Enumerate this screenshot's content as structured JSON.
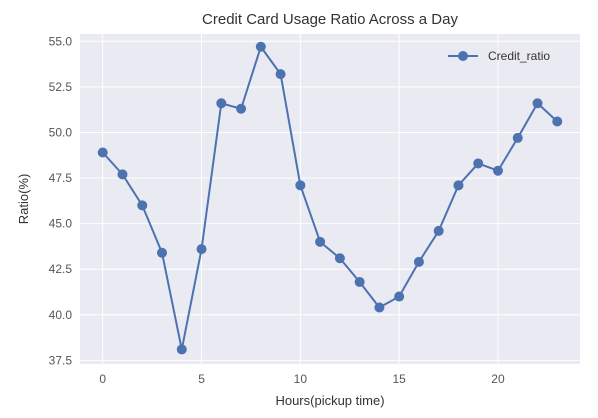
{
  "chart_data": {
    "type": "line",
    "title": "Credit Card Usage Ratio Across a Day",
    "xlabel": "Hours(pickup time)",
    "ylabel": "Ratio(%)",
    "xlim": [
      -1.15,
      24.15
    ],
    "ylim": [
      37.3,
      55.4
    ],
    "xticks": [
      0,
      5,
      10,
      15,
      20
    ],
    "yticks": [
      37.5,
      40.0,
      42.5,
      45.0,
      47.5,
      50.0,
      52.5,
      55.0
    ],
    "ytick_labels": [
      "37.5",
      "40.0",
      "42.5",
      "45.0",
      "47.5",
      "50.0",
      "52.5",
      "55.0"
    ],
    "xtick_labels": [
      "0",
      "5",
      "10",
      "15",
      "20"
    ],
    "grid": true,
    "legend_position": "top-right",
    "x": [
      0,
      1,
      2,
      3,
      4,
      5,
      6,
      7,
      8,
      9,
      10,
      11,
      12,
      13,
      14,
      15,
      16,
      17,
      18,
      19,
      20,
      21,
      22,
      23
    ],
    "series": [
      {
        "name": "Credit_ratio",
        "color": "#4c72b0",
        "values": [
          48.9,
          47.7,
          46.0,
          43.4,
          38.1,
          43.6,
          51.6,
          51.3,
          54.7,
          53.2,
          47.1,
          44.0,
          43.1,
          41.8,
          40.4,
          41.0,
          42.9,
          44.6,
          47.1,
          48.3,
          47.9,
          49.7,
          51.6,
          50.6
        ]
      }
    ],
    "plot_background": "#eaeaf2",
    "grid_color": "#ffffff"
  }
}
